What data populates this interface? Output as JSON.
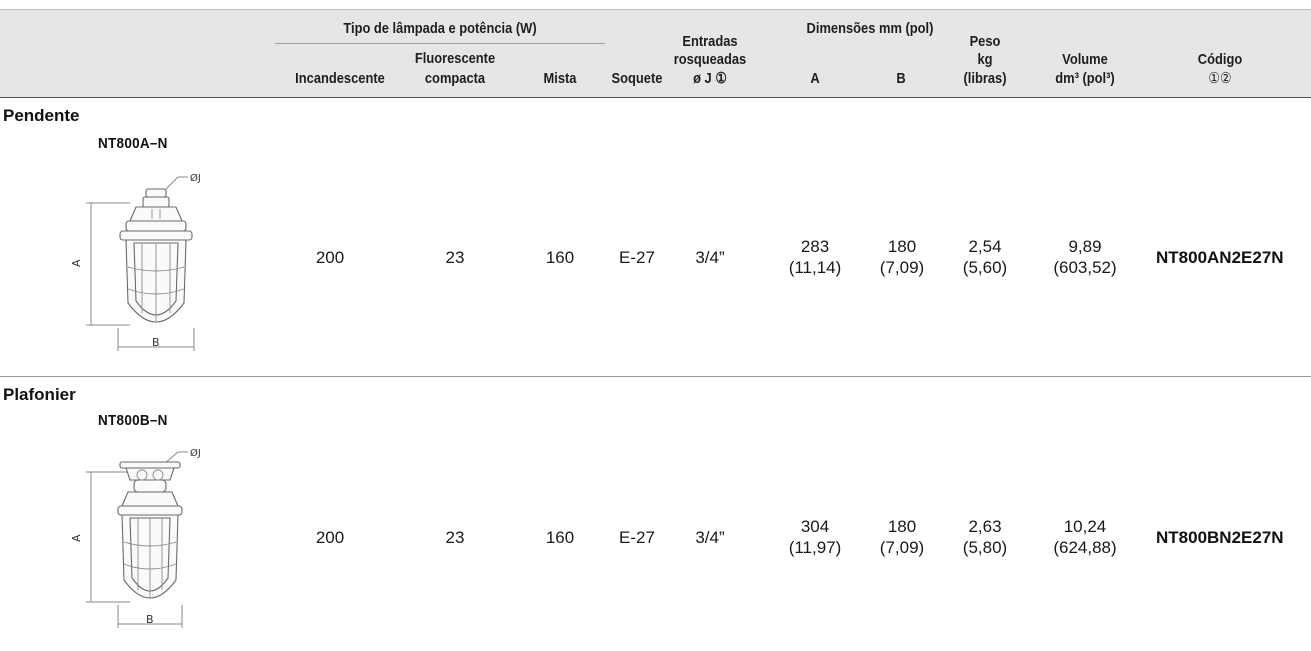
{
  "header": {
    "lamp_group": "Tipo de lâmpada e potência (W)",
    "incandescente": "Incandescente",
    "fluor_1": "Fluorescente",
    "fluor_2": "compacta",
    "mista": "Mista",
    "soquete": "Soquete",
    "entradas_1": "Entradas",
    "entradas_2": "rosqueadas",
    "entradas_3": "ø J ①",
    "dims_group": "Dimensões mm (pol)",
    "dim_a": "A",
    "dim_b": "B",
    "peso_1": "Peso",
    "peso_2": "kg",
    "peso_3": "(libras)",
    "volume_1": "Volume",
    "volume_2": "dm³ (pol³)",
    "codigo_1": "Código",
    "codigo_2": "①②"
  },
  "rows": [
    {
      "section": "Pendente",
      "model": "NT800A–N",
      "drawing_labels": {
        "a": "A",
        "b": "B",
        "j": "ØJ"
      },
      "incandescente": "200",
      "fluorescente": "23",
      "mista": "160",
      "soquete": "E-27",
      "entradas": "3/4”",
      "dim_a_mm": "283",
      "dim_a_pol": "(11,14)",
      "dim_b_mm": "180",
      "dim_b_pol": "(7,09)",
      "peso_kg": "2,54",
      "peso_lb": "(5,60)",
      "vol_dm3": "9,89",
      "vol_pol3": "(603,52)",
      "codigo": "NT800AN2E27N"
    },
    {
      "section": "Plafonier",
      "model": "NT800B–N",
      "drawing_labels": {
        "a": "A",
        "b": "B",
        "j": "ØJ"
      },
      "incandescente": "200",
      "fluorescente": "23",
      "mista": "160",
      "soquete": "E-27",
      "entradas": "3/4”",
      "dim_a_mm": "304",
      "dim_a_pol": "(11,97)",
      "dim_b_mm": "180",
      "dim_b_pol": "(7,09)",
      "peso_kg": "2,63",
      "peso_lb": "(5,80)",
      "vol_dm3": "10,24",
      "vol_pol3": "(624,88)",
      "codigo": "NT800BN2E27N"
    }
  ]
}
